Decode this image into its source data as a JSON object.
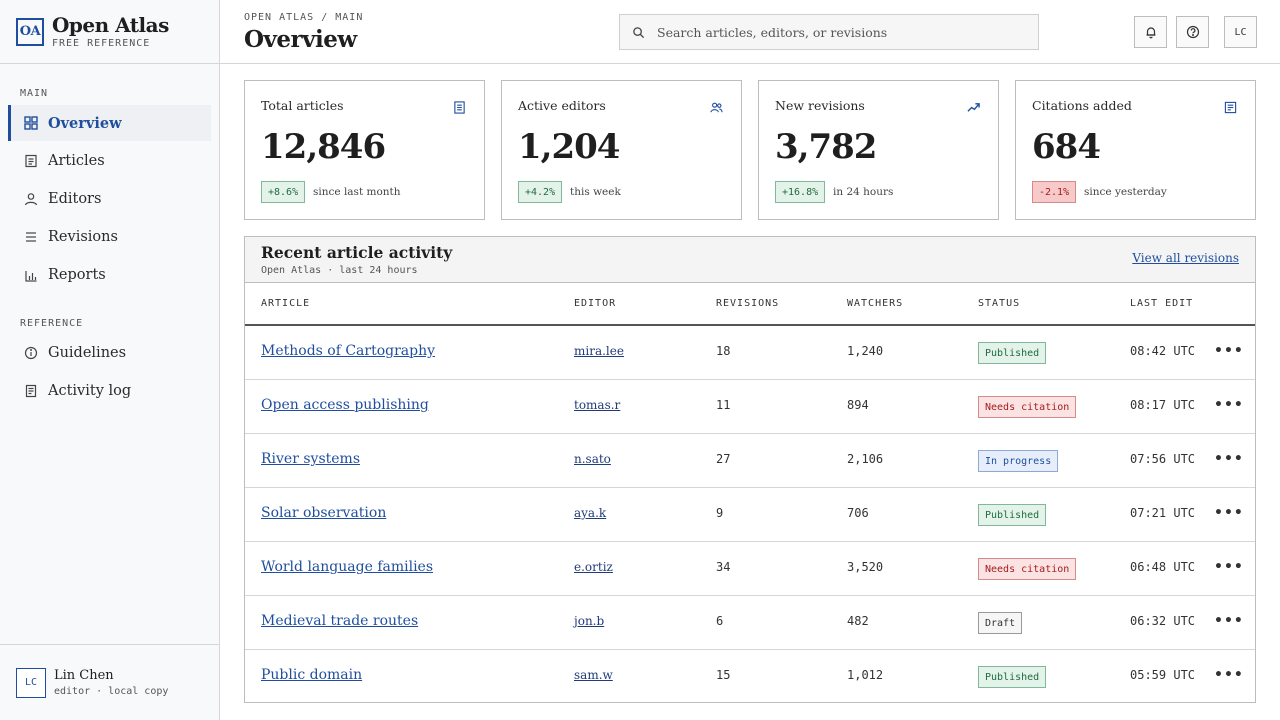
{
  "brand": {
    "logo": "OA",
    "title": "Open Atlas",
    "subtitle": "FREE REFERENCE"
  },
  "sidebar": {
    "section_main": "MAIN",
    "section_reference": "REFERENCE",
    "items": [
      {
        "label": "Overview",
        "icon": "grid-icon",
        "active": true
      },
      {
        "label": "Articles",
        "icon": "document-icon"
      },
      {
        "label": "Editors",
        "icon": "person-icon"
      },
      {
        "label": "Revisions",
        "icon": "list-icon"
      },
      {
        "label": "Reports",
        "icon": "bar-chart-icon"
      },
      {
        "label": "Guidelines",
        "icon": "info-icon"
      },
      {
        "label": "Activity log",
        "icon": "log-icon"
      }
    ],
    "user": {
      "initials": "LC",
      "name": "Lin Chen",
      "role": "editor · local copy"
    }
  },
  "header": {
    "breadcrumb": "OPEN ATLAS / MAIN",
    "title": "Overview",
    "search_placeholder": "Search articles, editors, or revisions",
    "user_initials": "LC"
  },
  "stats": [
    {
      "label": "Total articles",
      "value": "12,846",
      "delta": "+8.6%",
      "note": "since last month",
      "trend": "up",
      "icon": "document-icon"
    },
    {
      "label": "Active editors",
      "value": "1,204",
      "delta": "+4.2%",
      "note": "this week",
      "trend": "up",
      "icon": "people-icon"
    },
    {
      "label": "New revisions",
      "value": "3,782",
      "delta": "+16.8%",
      "note": "in 24 hours",
      "trend": "up",
      "icon": "trend-up-icon"
    },
    {
      "label": "Citations added",
      "value": "684",
      "delta": "-2.1%",
      "note": "since yesterday",
      "trend": "down",
      "icon": "citation-icon"
    }
  ],
  "activity": {
    "title": "Recent article activity",
    "subtitle": "Open Atlas · last 24 hours",
    "view_all": "View all revisions",
    "columns": [
      "ARTICLE",
      "EDITOR",
      "REVISIONS",
      "WATCHERS",
      "STATUS",
      "LAST EDIT"
    ],
    "rows": [
      {
        "article": "Methods of Cartography",
        "editor": "mira.lee",
        "revisions": "18",
        "watchers": "1,240",
        "status": "Published",
        "last_edit": "08:42 UTC"
      },
      {
        "article": "Open access publishing",
        "editor": "tomas.r",
        "revisions": "11",
        "watchers": "894",
        "status": "Needs citation",
        "last_edit": "08:17 UTC"
      },
      {
        "article": "River systems",
        "editor": "n.sato",
        "revisions": "27",
        "watchers": "2,106",
        "status": "In progress",
        "last_edit": "07:56 UTC"
      },
      {
        "article": "Solar observation",
        "editor": "aya.k",
        "revisions": "9",
        "watchers": "706",
        "status": "Published",
        "last_edit": "07:21 UTC"
      },
      {
        "article": "World language families",
        "editor": "e.ortiz",
        "revisions": "34",
        "watchers": "3,520",
        "status": "Needs citation",
        "last_edit": "06:48 UTC"
      },
      {
        "article": "Medieval trade routes",
        "editor": "jon.b",
        "revisions": "6",
        "watchers": "482",
        "status": "Draft",
        "last_edit": "06:32 UTC"
      },
      {
        "article": "Public domain",
        "editor": "sam.w",
        "revisions": "15",
        "watchers": "1,012",
        "status": "Published",
        "last_edit": "05:59 UTC"
      }
    ]
  },
  "colors": {
    "accent": "#1f4e9e",
    "positive": "#1f6b3e",
    "negative": "#a61b1b"
  }
}
